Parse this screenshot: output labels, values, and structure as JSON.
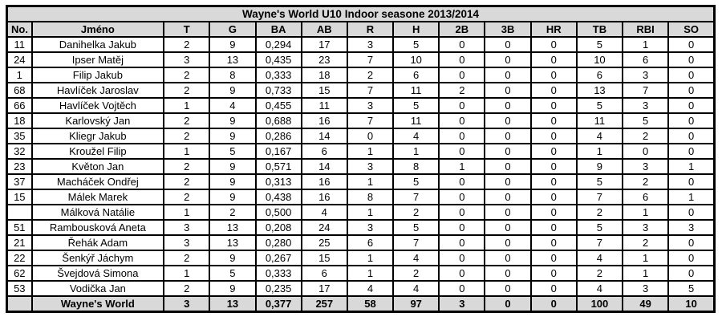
{
  "title": "Wayne's World U10  Indoor seasone 2013/2014",
  "columns": [
    "No.",
    "Jméno",
    "T",
    "G",
    "BA",
    "AB",
    "R",
    "H",
    "2B",
    "3B",
    "HR",
    "TB",
    "RBI",
    "SO"
  ],
  "rows": [
    {
      "no": "11",
      "name": "Danihelka Jakub",
      "stats": [
        "2",
        "9",
        "0,294",
        "17",
        "3",
        "5",
        "0",
        "0",
        "0",
        "5",
        "1",
        "0"
      ]
    },
    {
      "no": "24",
      "name": "Ipser Matěj",
      "stats": [
        "3",
        "13",
        "0,435",
        "23",
        "7",
        "10",
        "0",
        "0",
        "0",
        "10",
        "6",
        "0"
      ]
    },
    {
      "no": "1",
      "name": "Filip Jakub",
      "stats": [
        "2",
        "8",
        "0,333",
        "18",
        "2",
        "6",
        "0",
        "0",
        "0",
        "6",
        "3",
        "0"
      ]
    },
    {
      "no": "68",
      "name": "Havlíček Jaroslav",
      "stats": [
        "2",
        "9",
        "0,733",
        "15",
        "7",
        "11",
        "2",
        "0",
        "0",
        "13",
        "7",
        "0"
      ]
    },
    {
      "no": "66",
      "name": "Havlíček Vojtěch",
      "stats": [
        "1",
        "4",
        "0,455",
        "11",
        "3",
        "5",
        "0",
        "0",
        "0",
        "5",
        "3",
        "0"
      ]
    },
    {
      "no": "18",
      "name": "Karlovský Jan",
      "stats": [
        "2",
        "9",
        "0,688",
        "16",
        "7",
        "11",
        "0",
        "0",
        "0",
        "11",
        "5",
        "0"
      ]
    },
    {
      "no": "35",
      "name": "Kliegr Jakub",
      "stats": [
        "2",
        "9",
        "0,286",
        "14",
        "0",
        "4",
        "0",
        "0",
        "0",
        "4",
        "2",
        "0"
      ]
    },
    {
      "no": "32",
      "name": "Kroužel Filip",
      "stats": [
        "1",
        "5",
        "0,167",
        "6",
        "1",
        "1",
        "0",
        "0",
        "0",
        "1",
        "0",
        "0"
      ]
    },
    {
      "no": "23",
      "name": "Květon Jan",
      "stats": [
        "2",
        "9",
        "0,571",
        "14",
        "3",
        "8",
        "1",
        "0",
        "0",
        "9",
        "3",
        "1"
      ]
    },
    {
      "no": "37",
      "name": "Macháček Ondřej",
      "stats": [
        "2",
        "9",
        "0,313",
        "16",
        "1",
        "5",
        "0",
        "0",
        "0",
        "5",
        "2",
        "0"
      ]
    },
    {
      "no": "15",
      "name": "Málek Marek",
      "stats": [
        "2",
        "9",
        "0,438",
        "16",
        "8",
        "7",
        "0",
        "0",
        "0",
        "7",
        "6",
        "1"
      ]
    },
    {
      "no": "",
      "name": "Málková Natálie",
      "stats": [
        "1",
        "2",
        "0,500",
        "4",
        "1",
        "2",
        "0",
        "0",
        "0",
        "2",
        "1",
        "0"
      ]
    },
    {
      "no": "51",
      "name": "Rambousková Aneta",
      "stats": [
        "3",
        "13",
        "0,208",
        "24",
        "3",
        "5",
        "0",
        "0",
        "0",
        "5",
        "3",
        "3"
      ]
    },
    {
      "no": "21",
      "name": "Řehák Adam",
      "stats": [
        "3",
        "13",
        "0,280",
        "25",
        "6",
        "7",
        "0",
        "0",
        "0",
        "7",
        "2",
        "0"
      ]
    },
    {
      "no": "22",
      "name": "Šenkýř Jáchym",
      "stats": [
        "2",
        "9",
        "0,267",
        "15",
        "1",
        "4",
        "0",
        "0",
        "0",
        "4",
        "1",
        "0"
      ]
    },
    {
      "no": "62",
      "name": "Švejdová Simona",
      "stats": [
        "1",
        "5",
        "0,333",
        "6",
        "1",
        "2",
        "0",
        "0",
        "0",
        "2",
        "1",
        "0"
      ]
    },
    {
      "no": "53",
      "name": "Vodička Jan",
      "stats": [
        "2",
        "9",
        "0,235",
        "17",
        "4",
        "4",
        "0",
        "0",
        "0",
        "4",
        "3",
        "5"
      ]
    }
  ],
  "total": {
    "no": "",
    "name": "Wayne's World",
    "stats": [
      "3",
      "13",
      "0,377",
      "257",
      "58",
      "97",
      "3",
      "0",
      "0",
      "100",
      "49",
      "10"
    ]
  },
  "colors": {
    "band_bg": "#d9d9d9",
    "border": "#000000",
    "row_bg": "#ffffff"
  }
}
